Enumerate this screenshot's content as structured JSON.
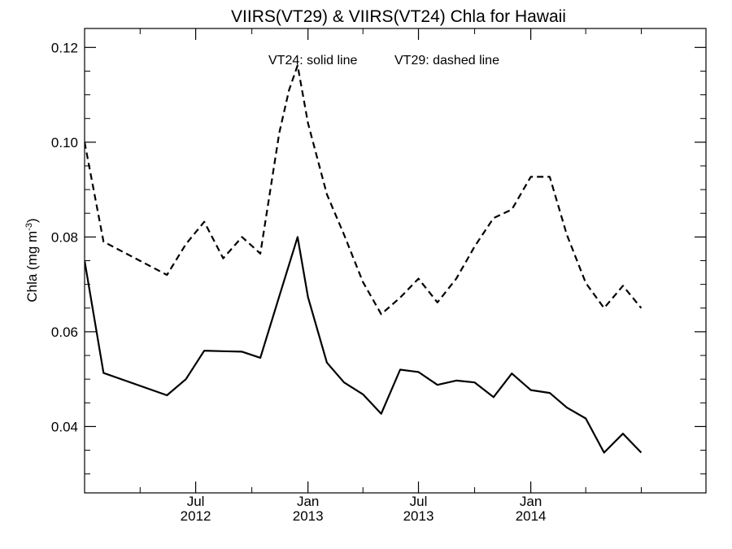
{
  "chart_data": {
    "type": "line",
    "title": "VIIRS(VT29) & VIIRS(VT24)  Chla for Hawaii",
    "ylabel": "Chla (mg m",
    "ylabel_sup": "-3",
    "ylabel_end": ")",
    "annotation_vt24": "VT24: solid line",
    "annotation_vt29": "VT29: dashed line",
    "ylim": [
      0.026,
      0.124
    ],
    "xlim": [
      "2012-01-01",
      "2014-10-15"
    ],
    "grid": false,
    "yticks": [
      0.04,
      0.06,
      0.08,
      0.1,
      0.12
    ],
    "ytick_labels": [
      "0.04",
      "0.06",
      "0.08",
      "0.10",
      "0.12"
    ],
    "xticks_labeled": [
      {
        "date": "2012-07-01",
        "month": "Jul",
        "year": "2012"
      },
      {
        "date": "2013-01-01",
        "month": "Jan",
        "year": "2013"
      },
      {
        "date": "2013-07-01",
        "month": "Jul",
        "year": "2013"
      },
      {
        "date": "2014-01-01",
        "month": "Jan",
        "year": "2014"
      }
    ],
    "xticks_minor": [
      "2012-04-01",
      "2012-10-01",
      "2013-04-01",
      "2013-10-01",
      "2014-04-01",
      "2014-07-01"
    ],
    "series": [
      {
        "style": "dashed",
        "x": [
          "2012-01-01",
          "2012-02-01",
          "2012-05-15",
          "2012-06-15",
          "2012-07-15",
          "2012-08-15",
          "2012-09-15",
          "2012-10-15",
          "2012-11-15",
          "2012-12-01",
          "2012-12-15",
          "2013-01-01",
          "2013-02-01",
          "2013-03-01",
          "2013-04-01",
          "2013-05-01",
          "2013-06-01",
          "2013-07-01",
          "2013-08-01",
          "2013-09-01",
          "2013-10-01",
          "2013-11-01",
          "2013-12-01",
          "2014-01-01",
          "2014-02-01",
          "2014-03-01",
          "2014-04-01",
          "2014-05-01",
          "2014-06-01",
          "2014-07-01"
        ],
        "y": [
          0.1,
          0.079,
          0.072,
          0.0785,
          0.0832,
          0.0755,
          0.08,
          0.0765,
          0.102,
          0.111,
          0.1162,
          0.104,
          0.089,
          0.0805,
          0.0705,
          0.0637,
          0.0672,
          0.0712,
          0.0662,
          0.0712,
          0.078,
          0.084,
          0.0858,
          0.0927,
          0.0927,
          0.0805,
          0.0703,
          0.065,
          0.0697,
          0.065
        ]
      },
      {
        "style": "solid",
        "x": [
          "2012-01-01",
          "2012-02-01",
          "2012-05-15",
          "2012-06-15",
          "2012-07-15",
          "2012-08-15",
          "2012-09-15",
          "2012-10-15",
          "2012-11-15",
          "2012-12-15",
          "2013-01-01",
          "2013-02-01",
          "2013-03-01",
          "2013-04-01",
          "2013-05-01",
          "2013-06-01",
          "2013-07-01",
          "2013-08-01",
          "2013-09-01",
          "2013-10-01",
          "2013-11-01",
          "2013-12-01",
          "2014-01-01",
          "2014-02-01",
          "2014-03-01",
          "2014-04-01",
          "2014-05-01",
          "2014-06-01",
          "2014-07-01"
        ],
        "y": [
          0.075,
          0.0513,
          0.0466,
          0.05,
          0.056,
          0.0559,
          0.0558,
          0.0545,
          0.0675,
          0.08,
          0.0673,
          0.0535,
          0.0493,
          0.0468,
          0.0427,
          0.052,
          0.0515,
          0.0488,
          0.0497,
          0.0493,
          0.0462,
          0.0512,
          0.0477,
          0.0471,
          0.044,
          0.0417,
          0.0345,
          0.0385,
          0.0345
        ]
      }
    ]
  }
}
